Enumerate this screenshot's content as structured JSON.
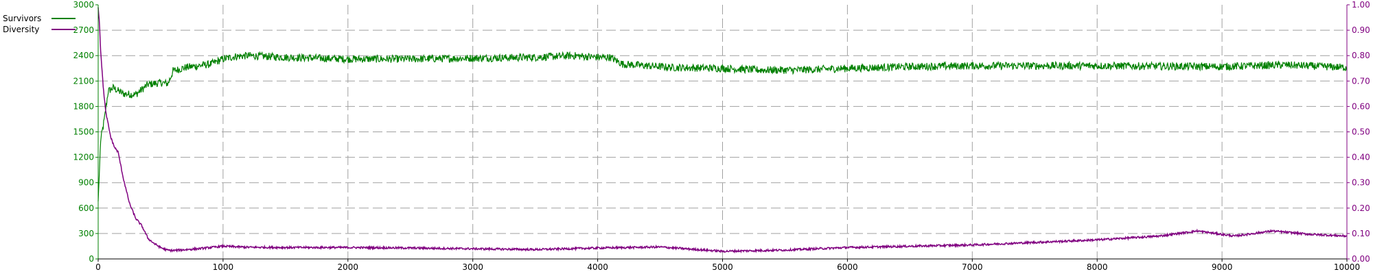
{
  "chart_data": {
    "type": "line",
    "title": "",
    "xlabel": "",
    "ylabel_left": "",
    "ylabel_right": "",
    "xlim": [
      0,
      10000
    ],
    "ylim_left": [
      0,
      3000
    ],
    "ylim_right": [
      0,
      1.0
    ],
    "x_ticks": [
      "0",
      "1000",
      "2000",
      "3000",
      "4000",
      "5000",
      "6000",
      "7000",
      "8000",
      "9000",
      "10000"
    ],
    "y_left_ticks": [
      "0",
      "300",
      "600",
      "900",
      "1200",
      "1500",
      "1800",
      "2100",
      "2400",
      "2700",
      "3000"
    ],
    "y_right_ticks": [
      "0.00",
      "0.10",
      "0.20",
      "0.30",
      "0.40",
      "0.50",
      "0.60",
      "0.70",
      "0.80",
      "0.90",
      "1.00"
    ],
    "grid": true,
    "legend_position": "top-left",
    "series": [
      {
        "name": "Survivors",
        "axis": "left",
        "color": "#008000",
        "noise": 45,
        "x": [
          0,
          20,
          50,
          80,
          120,
          200,
          300,
          400,
          500,
          560,
          600,
          700,
          800,
          900,
          1000,
          1100,
          1200,
          1500,
          2000,
          2500,
          3000,
          3500,
          3800,
          4000,
          4100,
          4200,
          4400,
          4600,
          5000,
          5300,
          5600,
          6000,
          6500,
          7000,
          8000,
          9000,
          9500,
          10000
        ],
        "values": [
          680,
          1400,
          1650,
          1980,
          2020,
          1950,
          1940,
          2060,
          2080,
          2070,
          2220,
          2260,
          2280,
          2300,
          2360,
          2390,
          2400,
          2380,
          2360,
          2360,
          2370,
          2380,
          2400,
          2380,
          2380,
          2300,
          2280,
          2260,
          2250,
          2230,
          2230,
          2250,
          2270,
          2280,
          2280,
          2270,
          2290,
          2260
        ]
      },
      {
        "name": "Diversity",
        "axis": "right",
        "color": "#800080",
        "noise": 0.004,
        "x": [
          0,
          10,
          20,
          40,
          60,
          80,
          100,
          130,
          160,
          200,
          250,
          300,
          350,
          400,
          450,
          500,
          550,
          600,
          800,
          1000,
          1200,
          1500,
          2000,
          2500,
          3000,
          3500,
          4000,
          4500,
          5000,
          5500,
          6000,
          6500,
          7000,
          7500,
          8000,
          8500,
          8800,
          9100,
          9400,
          9700,
          10000
        ],
        "values": [
          0.99,
          0.93,
          0.82,
          0.68,
          0.58,
          0.53,
          0.48,
          0.44,
          0.42,
          0.32,
          0.22,
          0.16,
          0.13,
          0.08,
          0.06,
          0.045,
          0.035,
          0.033,
          0.04,
          0.05,
          0.046,
          0.045,
          0.045,
          0.043,
          0.04,
          0.037,
          0.043,
          0.047,
          0.03,
          0.035,
          0.045,
          0.05,
          0.055,
          0.065,
          0.075,
          0.09,
          0.11,
          0.09,
          0.11,
          0.097,
          0.09
        ]
      }
    ]
  }
}
